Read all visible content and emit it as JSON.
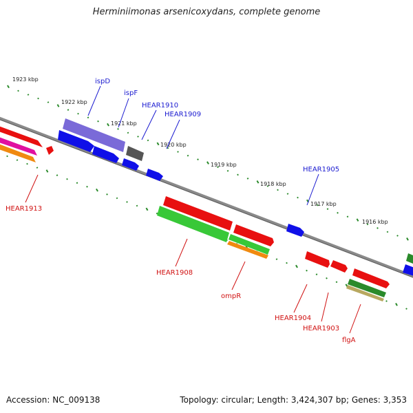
{
  "title": "Herminiimonas arsenicoxydans, complete genome",
  "footer": {
    "accession": "Accession: NC_009138",
    "topology": "Topology: circular; Length: 3,424,307 bp; Genes: 3,353"
  },
  "colors": {
    "backbone": "#8a8a8a",
    "tick_green": "#2a8a2a",
    "label_blue": "#1a1ad0",
    "label_red": "#d01010"
  },
  "kbp_marks": [
    "1923 kbp",
    "1922 kbp",
    "1921 kbp",
    "1920 kbp",
    "1919 kbp",
    "1918 kbp",
    "1917 kbp",
    "1916 kbp"
  ],
  "gene_labels_top": [
    "ispD",
    "ispF",
    "HEAR1910",
    "HEAR1909",
    "HEAR1905"
  ],
  "gene_labels_bottom": [
    "HEAR1913",
    "HEAR1908",
    "ompR",
    "HEAR1904",
    "HEAR1903",
    "flgA"
  ],
  "feature_colors": {
    "red": "#e81010",
    "blue": "#1010e8",
    "purple": "#7a6ad8",
    "grey": "#555555",
    "green": "#38c838",
    "orange": "#f08a10",
    "magenta": "#e010a0",
    "darkgreen": "#2a8a2a",
    "khaki": "#b8a860"
  }
}
